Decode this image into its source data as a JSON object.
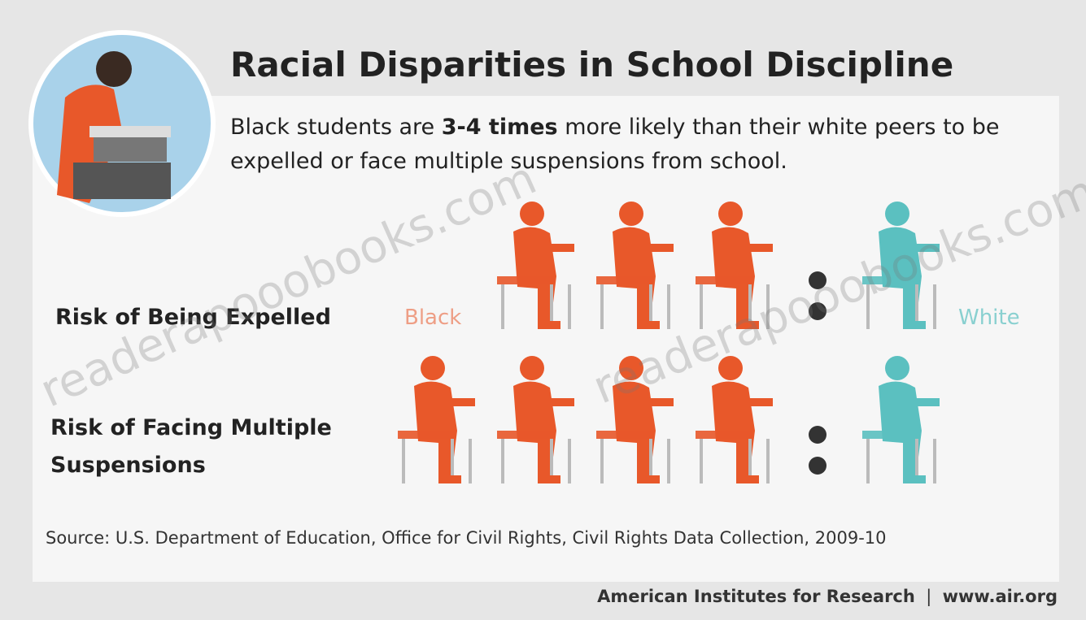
{
  "title": "Racial Disparities in School Discipline",
  "subtitle": {
    "before": "Black students are ",
    "emphasis": "3-4 times",
    "after": " more likely than their white peers to be expelled or face multiple suspensions from school."
  },
  "group_labels": {
    "black": "Black",
    "white": "White"
  },
  "colors": {
    "black": "#e8582a",
    "white": "#5bc0c0"
  },
  "rows": [
    {
      "label": "Risk of Being Expelled",
      "black_count": 3,
      "white_count": 1
    },
    {
      "label": "Risk of Facing Multiple Suspensions",
      "black_count": 4,
      "white_count": 1
    }
  ],
  "source": "Source: U.S. Department of Education, Office for Civil Rights, Civil Rights Data Collection, 2009-10",
  "footer": {
    "org": "American Institutes for Research",
    "url": "www.air.org"
  },
  "watermarks": [
    "readerapooobooks.com",
    "readerapooobooks.com"
  ]
}
